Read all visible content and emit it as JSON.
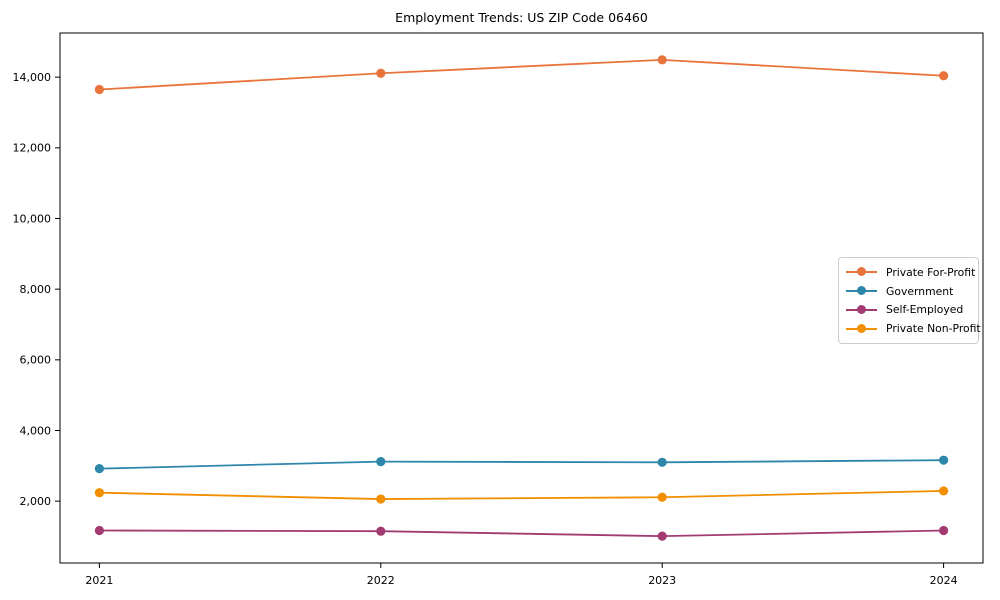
{
  "figure": {
    "title": "Employment Trends: US ZIP Code 06460"
  },
  "chart_data": {
    "type": "line",
    "title": "Employment Trends: US ZIP Code 06460",
    "xlabel": "",
    "ylabel": "",
    "grid": false,
    "categories": [
      2021,
      2022,
      2023,
      2024
    ],
    "x_tick_labels": [
      "2021",
      "2022",
      "2023",
      "2024"
    ],
    "y_ticks": [
      {
        "value": 2000,
        "label": "2,000"
      },
      {
        "value": 4000,
        "label": "4,000"
      },
      {
        "value": 6000,
        "label": "6,000"
      },
      {
        "value": 8000,
        "label": "8,000"
      },
      {
        "value": 10000,
        "label": "10,000"
      },
      {
        "value": 12000,
        "label": "12,000"
      },
      {
        "value": 14000,
        "label": "14,000"
      }
    ],
    "ylim": [
      250,
      15250
    ],
    "xlim": [
      2020.86,
      2024.14
    ],
    "legend_position": "center right",
    "legend_border_color": "#cccccc",
    "axis_color": "#000000",
    "background_color": "#ffffff",
    "series": [
      {
        "name": "Private For-Profit",
        "color": "#E8743B",
        "values": [
          13650,
          14110,
          14490,
          14040
        ]
      },
      {
        "name": "Government",
        "color": "#2E86AB",
        "values": [
          2920,
          3120,
          3100,
          3160
        ]
      },
      {
        "name": "Self-Employed",
        "color": "#A23B72",
        "values": [
          1170,
          1150,
          1010,
          1170
        ]
      },
      {
        "name": "Private Non-Profit",
        "color": "#F18F01",
        "values": [
          2240,
          2060,
          2110,
          2290
        ]
      }
    ]
  }
}
